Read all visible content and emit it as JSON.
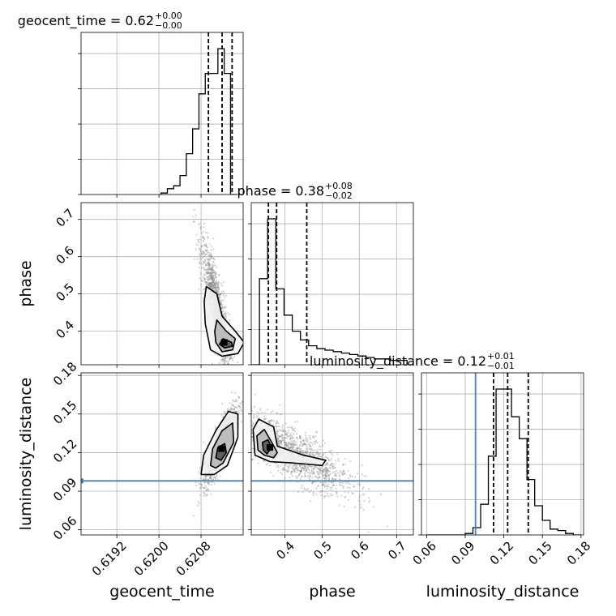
{
  "chart_data": {
    "type": "corner",
    "parameters": [
      "geocent_time",
      "phase",
      "luminosity_distance"
    ],
    "axis_labels": {
      "geocent_time": "geocent_time",
      "phase": "phase",
      "luminosity_distance": "luminosity_distance"
    },
    "ranges": {
      "geocent_time": [
        0.61852,
        0.6216
      ],
      "phase": [
        0.31,
        0.745
      ],
      "luminosity_distance": [
        0.056,
        0.182
      ]
    },
    "ticks": {
      "geocent_time": [
        "0.6192",
        "0.6200",
        "0.6208"
      ],
      "phase": [
        "0.4",
        "0.5",
        "0.6",
        "0.7"
      ],
      "luminosity_distance": [
        "0.06",
        "0.09",
        "0.12",
        "0.15",
        "0.18"
      ]
    },
    "titles": [
      {
        "param": "geocent_time",
        "name": "geocent_time",
        "value": "0.62",
        "plus": "+0.00",
        "minus": "−0.00"
      },
      {
        "param": "phase",
        "name": "phase",
        "value": "0.38",
        "plus": "+0.08",
        "minus": "−0.02"
      },
      {
        "param": "luminosity_distance",
        "name": "luminosity_distance",
        "value": "0.12",
        "plus": "+0.01",
        "minus": "−0.01"
      }
    ],
    "quantiles": {
      "geocent_time": [
        0.62094,
        0.6212,
        0.62139
      ],
      "phase": [
        0.356,
        0.378,
        0.459
      ],
      "luminosity_distance": [
        0.112,
        0.123,
        0.139
      ]
    },
    "truth": {
      "luminosity_distance": 0.098
    },
    "histograms": {
      "geocent_time": {
        "edges": [
          0.62004,
          0.62016,
          0.62028,
          0.6204,
          0.62052,
          0.62064,
          0.62076,
          0.62088,
          0.621,
          0.62112,
          0.62124,
          0.62136,
          0.62148
        ],
        "counts": [
          0.01,
          0.04,
          0.06,
          0.13,
          0.28,
          0.45,
          0.69,
          0.83,
          0.83,
          1.0,
          0.83,
          0.0
        ]
      },
      "phase": {
        "edges": [
          0.31,
          0.332,
          0.354,
          0.376,
          0.398,
          0.42,
          0.442,
          0.464,
          0.486,
          0.508,
          0.53,
          0.552,
          0.574,
          0.596,
          0.618,
          0.64,
          0.662,
          0.684,
          0.706,
          0.728
        ],
        "counts": [
          0.0,
          0.59,
          1.0,
          0.52,
          0.34,
          0.23,
          0.17,
          0.13,
          0.11,
          0.1,
          0.09,
          0.08,
          0.07,
          0.06,
          0.05,
          0.04,
          0.04,
          0.03,
          0.03
        ]
      },
      "luminosity_distance": {
        "edges": [
          0.06,
          0.066,
          0.072,
          0.078,
          0.084,
          0.09,
          0.096,
          0.102,
          0.108,
          0.114,
          0.12,
          0.126,
          0.132,
          0.138,
          0.144,
          0.15,
          0.156,
          0.162,
          0.168,
          0.174,
          0.18
        ],
        "counts": [
          0.0,
          0.0,
          0.0,
          0.0,
          0.0,
          0.01,
          0.05,
          0.21,
          0.54,
          1.0,
          1.0,
          0.81,
          0.66,
          0.38,
          0.2,
          0.1,
          0.04,
          0.03,
          0.01,
          0.0
        ]
      }
    },
    "scatter_clouds": [
      {
        "x_param": "geocent_time",
        "y_param": "phase",
        "count": 1300,
        "x_mean": 0.6211,
        "x_sd": 0.00015,
        "y_mean": 0.46,
        "y_sd": 0.09,
        "correlation": -0.85
      },
      {
        "x_param": "geocent_time",
        "y_param": "luminosity_distance",
        "count": 1300,
        "x_mean": 0.62115,
        "x_sd": 0.00015,
        "y_mean": 0.125,
        "y_sd": 0.015,
        "correlation": 0.85
      },
      {
        "x_param": "phase",
        "y_param": "luminosity_distance",
        "count": 1500,
        "x_mean": 0.42,
        "x_sd": 0.08,
        "y_mean": 0.12,
        "y_sd": 0.016,
        "correlation": -0.8
      }
    ],
    "contours": [
      {
        "x_param": "geocent_time",
        "y_param": "phase",
        "levels": [
          [
            [
              0.6209,
              0.52
            ],
            [
              0.6211,
              0.5
            ],
            [
              0.6212,
              0.44
            ],
            [
              0.62145,
              0.4
            ],
            [
              0.62162,
              0.37
            ],
            [
              0.6215,
              0.34
            ],
            [
              0.6212,
              0.333
            ],
            [
              0.62098,
              0.35
            ],
            [
              0.62088,
              0.42
            ],
            [
              0.62086,
              0.48
            ]
          ],
          [
            [
              0.6211,
              0.43
            ],
            [
              0.62128,
              0.4
            ],
            [
              0.62145,
              0.38
            ],
            [
              0.6214,
              0.35
            ],
            [
              0.6212,
              0.345
            ],
            [
              0.62108,
              0.37
            ],
            [
              0.62106,
              0.4
            ]
          ],
          [
            [
              0.62122,
              0.38
            ],
            [
              0.62138,
              0.37
            ],
            [
              0.6214,
              0.36
            ],
            [
              0.62125,
              0.355
            ],
            [
              0.62115,
              0.365
            ]
          ]
        ]
      },
      {
        "x_param": "geocent_time",
        "y_param": "luminosity_distance",
        "levels": [
          [
            [
              0.6208,
              0.103
            ],
            [
              0.62085,
              0.118
            ],
            [
              0.62108,
              0.137
            ],
            [
              0.62132,
              0.152
            ],
            [
              0.6215,
              0.15
            ],
            [
              0.6215,
              0.132
            ],
            [
              0.6213,
              0.11
            ],
            [
              0.62105,
              0.103
            ]
          ],
          [
            [
              0.62098,
              0.11
            ],
            [
              0.62102,
              0.123
            ],
            [
              0.6212,
              0.137
            ],
            [
              0.6214,
              0.143
            ],
            [
              0.62142,
              0.128
            ],
            [
              0.62122,
              0.112
            ],
            [
              0.62108,
              0.108
            ]
          ],
          [
            [
              0.62108,
              0.116
            ],
            [
              0.62112,
              0.124
            ],
            [
              0.62125,
              0.127
            ],
            [
              0.62128,
              0.12
            ],
            [
              0.62118,
              0.114
            ]
          ]
        ]
      },
      {
        "x_param": "phase",
        "y_param": "luminosity_distance",
        "levels": [
          [
            [
              0.315,
              0.138
            ],
            [
              0.33,
              0.146
            ],
            [
              0.37,
              0.14
            ],
            [
              0.38,
              0.125
            ],
            [
              0.45,
              0.118
            ],
            [
              0.51,
              0.114
            ],
            [
              0.5,
              0.11
            ],
            [
              0.42,
              0.112
            ],
            [
              0.36,
              0.113
            ],
            [
              0.32,
              0.118
            ]
          ],
          [
            [
              0.325,
              0.133
            ],
            [
              0.345,
              0.138
            ],
            [
              0.365,
              0.128
            ],
            [
              0.38,
              0.12
            ],
            [
              0.37,
              0.116
            ],
            [
              0.345,
              0.118
            ],
            [
              0.328,
              0.122
            ]
          ],
          [
            [
              0.34,
              0.128
            ],
            [
              0.355,
              0.13
            ],
            [
              0.365,
              0.124
            ],
            [
              0.352,
              0.119
            ],
            [
              0.342,
              0.122
            ]
          ]
        ]
      }
    ],
    "medians_2d": [
      {
        "x_param": "geocent_time",
        "y_param": "phase",
        "x": 0.62124,
        "y": 0.37
      },
      {
        "x_param": "geocent_time",
        "y_param": "luminosity_distance",
        "x": 0.62119,
        "y": 0.123
      },
      {
        "x_param": "phase",
        "y_param": "luminosity_distance",
        "x": 0.36,
        "y": 0.124
      }
    ],
    "grid": true,
    "truth_color": "#4682b4",
    "line_color": "#000000",
    "point_color": "#808080"
  }
}
